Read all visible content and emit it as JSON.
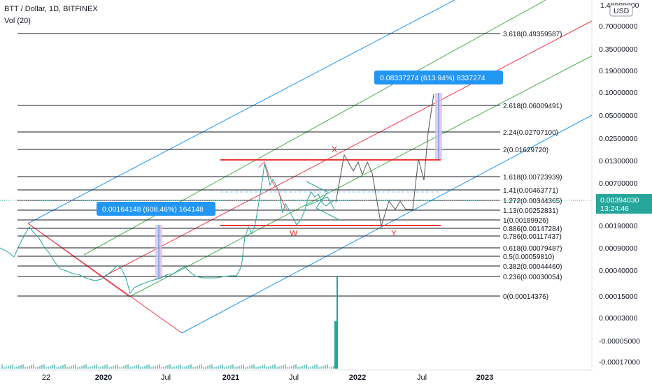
{
  "legend": {
    "symbol": "BTT / Dollar, 1D, BITFINEX",
    "volume": "Vol (20)"
  },
  "chart_data": {
    "type": "line",
    "symbol": "BTT / Dollar",
    "interval": "1D",
    "exchange": "BITFINEX",
    "y_scale": "log",
    "currency": "USD",
    "y_ticks": [
      "1.40000000",
      "0.70000000",
      "0.35000000",
      "0.19000000",
      "0.10000000",
      "0.05000000",
      "0.02500000",
      "0.01300000",
      "0.00700000",
      "0.00380000",
      "0.00190000",
      "0.00090000",
      "0.00040000",
      "0.00015000",
      "0.00003000",
      "-0.00005000",
      "-0.00017000"
    ],
    "x_ticks": [
      "22",
      "2020",
      "Jul",
      "2021",
      "Jul",
      "2022",
      "Jul",
      "2023"
    ],
    "last_price": "0.00394030",
    "countdown": "13:24:46",
    "fib_levels": [
      {
        "ratio": "3.618",
        "price": "0.49359587",
        "label": "3.618(0.49359587)"
      },
      {
        "ratio": "2.618",
        "price": "0.06009491",
        "label": "2.618(0.06009491)"
      },
      {
        "ratio": "2.24",
        "price": "0.02707100",
        "label": "2.24(0.02707100)"
      },
      {
        "ratio": "2",
        "price": "0.01629720",
        "label": "2(0.01629720)"
      },
      {
        "ratio": "1.618",
        "price": "0.00723939",
        "label": "1.618(0.00723939)"
      },
      {
        "ratio": "1.41",
        "price": "0.00463771",
        "label": "1.41(0.00463771)"
      },
      {
        "ratio": "1.272",
        "price": "0.00344365",
        "label": "1.272(0.00344365)"
      },
      {
        "ratio": "1.13",
        "price": "0.00252831",
        "label": "1.13(0.00252831)"
      },
      {
        "ratio": "1",
        "price": "0.00189926",
        "label": "1(0.00189926)"
      },
      {
        "ratio": "0.886",
        "price": "0.00147284",
        "label": "0.886(0.00147284)"
      },
      {
        "ratio": "0.786",
        "price": "0.00117437",
        "label": "0.786(0.00117437)"
      },
      {
        "ratio": "0.618",
        "price": "0.00079487",
        "label": "0.618(0.00079487)"
      },
      {
        "ratio": "0.5",
        "price": "0.00059810",
        "label": "0.5(0.00059810)"
      },
      {
        "ratio": "0.382",
        "price": "0.00044460",
        "label": "0.382(0.00044460)"
      },
      {
        "ratio": "0.236",
        "price": "0.00030054",
        "label": "0.236(0.00030054)"
      },
      {
        "ratio": "0",
        "price": "0.00014376",
        "label": "0(0.00014376)"
      }
    ],
    "measurements": [
      {
        "label": "0.00164148 (608.46%) 164148"
      },
      {
        "label": "0.08337274 (613.94%) 8337274"
      }
    ],
    "wave_labels": [
      "X",
      "W",
      "Y"
    ],
    "colors": {
      "price": "#26a69a",
      "down": "#ef5350",
      "fib": "#131722",
      "channel_blue": "#2196f3",
      "channel_green": "#4caf50",
      "channel_red": "#f23645",
      "projection": "#555555",
      "label_bg": "#2196f3",
      "measure_fill": "#e1bee7"
    }
  }
}
